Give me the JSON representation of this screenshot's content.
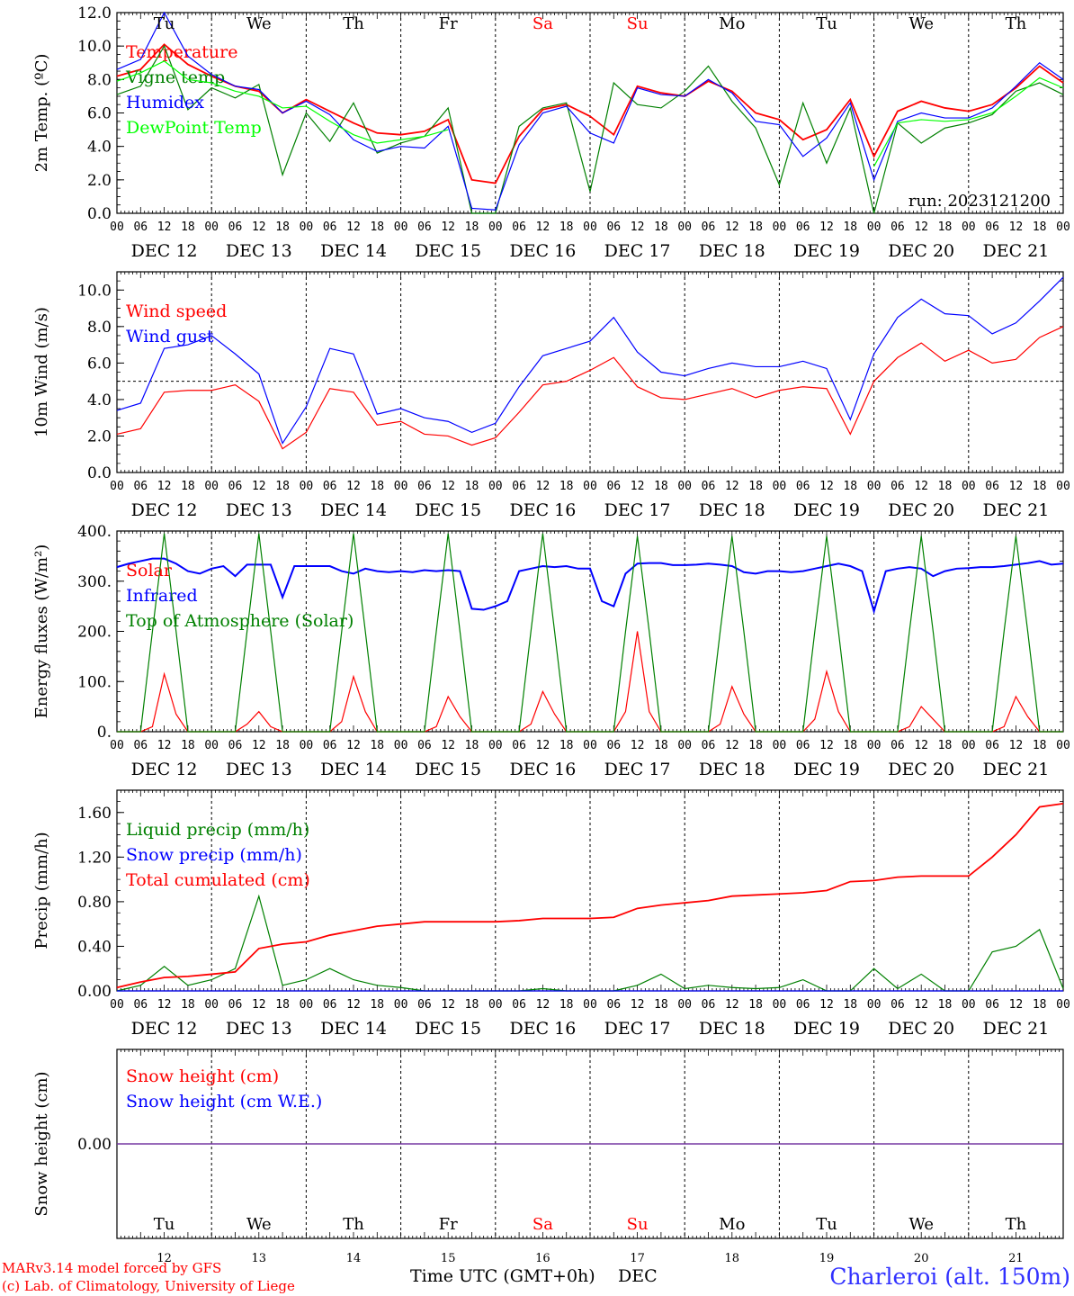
{
  "footer": {
    "credits": [
      "MARv3.14 model forced by GFS",
      "(c) Lab. of Climatology, University of Liege"
    ],
    "xlabel": "Time UTC (GMT+0h)",
    "month": "DEC",
    "station": "Charleroi (alt. 150m)"
  },
  "days": [
    "Tu",
    "We",
    "Th",
    "Fr",
    "Sa",
    "Su",
    "Mo",
    "Tu",
    "We",
    "Th"
  ],
  "weekend_days": [
    "Sa",
    "Su"
  ],
  "dates": [
    "DEC 12",
    "DEC 13",
    "DEC 14",
    "DEC 15",
    "DEC 16",
    "DEC 17",
    "DEC 18",
    "DEC 19",
    "DEC 20",
    "DEC 21"
  ],
  "day_numbers": [
    "12",
    "13",
    "14",
    "15",
    "16",
    "17",
    "18",
    "19",
    "20",
    "21"
  ],
  "hour_ticks": [
    "00",
    "06",
    "12",
    "18"
  ],
  "hour_end": "00",
  "colors": {
    "red": "#ff0000",
    "blue": "#0000ff",
    "green": "#008000",
    "lightgreen": "#00ff00",
    "purple": "#7030a0"
  },
  "chart_data": [
    {
      "type": "line",
      "ylabel": "2m Temp. (ºC)",
      "ylim": [
        0,
        12
      ],
      "yticks": [
        "0.0",
        "2.0",
        "4.0",
        "6.0",
        "8.0",
        "10.0",
        "12.0"
      ],
      "annotation": "run: 2023121200",
      "x_hours": [
        0,
        6,
        12,
        18,
        24,
        30,
        36,
        42,
        48,
        54,
        60,
        66,
        72,
        78,
        84,
        90,
        96,
        102,
        108,
        114,
        120,
        126,
        132,
        138,
        144,
        150,
        156,
        162,
        168,
        174,
        180,
        186,
        192,
        198,
        204,
        210,
        216,
        222,
        228,
        234,
        240
      ],
      "series": [
        {
          "name": "Temperature",
          "color": "#ff0000",
          "values": [
            8.2,
            8.6,
            10.1,
            8.9,
            8.2,
            7.6,
            7.3,
            6.0,
            6.8,
            6.1,
            5.4,
            4.8,
            4.7,
            4.9,
            5.6,
            2.0,
            1.8,
            4.6,
            6.2,
            6.5,
            5.8,
            4.7,
            7.6,
            7.2,
            7.0,
            7.9,
            7.3,
            6.0,
            5.6,
            4.4,
            5.0,
            6.8,
            3.4,
            6.1,
            6.7,
            6.3,
            6.1,
            6.5,
            7.5,
            8.8,
            7.8
          ]
        },
        {
          "name": "Vigne temp",
          "color": "#008000",
          "values": [
            7.1,
            7.6,
            10.0,
            6.2,
            7.5,
            6.9,
            7.7,
            2.3,
            6.0,
            4.3,
            6.6,
            3.6,
            4.2,
            4.6,
            6.3,
            0.0,
            0.0,
            5.2,
            6.3,
            6.6,
            1.3,
            7.8,
            6.5,
            6.3,
            7.3,
            8.8,
            6.7,
            5.1,
            1.7,
            6.6,
            3.0,
            6.3,
            0.0,
            5.4,
            4.2,
            5.1,
            5.4,
            5.9,
            7.3,
            7.8,
            7.1
          ]
        },
        {
          "name": "Humidex",
          "color": "#0000ff",
          "values": [
            8.6,
            9.2,
            12.0,
            9.4,
            8.3,
            7.6,
            7.4,
            6.0,
            6.7,
            5.9,
            4.4,
            3.7,
            4.0,
            3.9,
            5.2,
            0.3,
            0.2,
            4.1,
            6.0,
            6.4,
            4.8,
            4.2,
            7.5,
            7.1,
            7.0,
            8.0,
            7.2,
            5.5,
            5.3,
            3.4,
            4.5,
            6.6,
            2.0,
            5.5,
            6.0,
            5.7,
            5.7,
            6.3,
            7.6,
            9.0,
            8.0
          ]
        },
        {
          "name": "DewPoint Temp",
          "color": "#00ff00",
          "values": [
            7.9,
            8.4,
            9.1,
            8.0,
            7.8,
            7.3,
            7.0,
            6.3,
            6.4,
            5.5,
            4.7,
            4.2,
            4.4,
            4.6,
            5.0,
            null,
            null,
            null,
            null,
            null,
            null,
            null,
            null,
            null,
            null,
            null,
            null,
            null,
            null,
            null,
            null,
            null,
            2.8,
            5.4,
            5.6,
            5.5,
            5.6,
            6.0,
            7.0,
            8.1,
            7.5
          ]
        }
      ]
    },
    {
      "type": "line",
      "ylabel": "10m Wind (m/s)",
      "ylim": [
        0,
        11
      ],
      "yticks": [
        "0.0",
        "2.0",
        "4.0",
        "6.0",
        "8.0",
        "10.0"
      ],
      "reference_line": 5,
      "x_hours": [
        0,
        6,
        12,
        18,
        24,
        30,
        36,
        42,
        48,
        54,
        60,
        66,
        72,
        78,
        84,
        90,
        96,
        102,
        108,
        114,
        120,
        126,
        132,
        138,
        144,
        150,
        156,
        162,
        168,
        174,
        180,
        186,
        192,
        198,
        204,
        210,
        216,
        222,
        228,
        234,
        240
      ],
      "series": [
        {
          "name": "Wind speed",
          "color": "#ff0000",
          "values": [
            2.1,
            2.4,
            4.4,
            4.5,
            4.5,
            4.8,
            3.9,
            1.3,
            2.2,
            4.6,
            4.4,
            2.6,
            2.8,
            2.1,
            2.0,
            1.5,
            1.9,
            3.3,
            4.8,
            5.0,
            5.6,
            6.3,
            4.7,
            4.1,
            4.0,
            4.3,
            4.6,
            4.1,
            4.5,
            4.7,
            4.6,
            2.1,
            5.0,
            6.3,
            7.1,
            6.1,
            6.7,
            6.0,
            6.2,
            7.4,
            8.0
          ]
        },
        {
          "name": "Wind gust",
          "color": "#0000ff",
          "values": [
            3.4,
            3.8,
            6.8,
            7.0,
            7.5,
            6.5,
            5.4,
            1.6,
            3.6,
            6.8,
            6.5,
            3.2,
            3.5,
            3.0,
            2.8,
            2.2,
            2.7,
            4.7,
            6.4,
            6.8,
            7.2,
            8.5,
            6.6,
            5.5,
            5.3,
            5.7,
            6.0,
            5.8,
            5.8,
            6.1,
            5.7,
            2.9,
            6.5,
            8.5,
            9.5,
            8.7,
            8.6,
            7.6,
            8.2,
            9.4,
            10.7
          ]
        }
      ]
    },
    {
      "type": "line",
      "ylabel": "Energy fluxes (W/m²)",
      "ylim": [
        0,
        400
      ],
      "yticks": [
        "0.",
        "100.",
        "200.",
        "300.",
        "400."
      ],
      "x_hours": [
        0,
        3,
        6,
        9,
        12,
        15,
        18,
        21,
        24,
        27,
        30,
        33,
        36,
        39,
        42,
        45,
        48,
        51,
        54,
        57,
        60,
        63,
        66,
        69,
        72,
        75,
        78,
        81,
        84,
        87,
        90,
        93,
        96,
        99,
        102,
        105,
        108,
        111,
        114,
        117,
        120,
        123,
        126,
        129,
        132,
        135,
        138,
        141,
        144,
        147,
        150,
        153,
        156,
        159,
        162,
        165,
        168,
        171,
        174,
        177,
        180,
        183,
        186,
        189,
        192,
        195,
        198,
        201,
        204,
        207,
        210,
        213,
        216,
        219,
        222,
        225,
        228,
        231,
        234,
        237,
        240
      ],
      "series": [
        {
          "name": "Solar",
          "color": "#ff0000",
          "values": [
            0,
            0,
            0,
            10,
            115,
            35,
            0,
            0,
            0,
            0,
            0,
            15,
            40,
            10,
            0,
            0,
            0,
            0,
            0,
            20,
            110,
            40,
            0,
            0,
            0,
            0,
            0,
            10,
            70,
            30,
            0,
            0,
            0,
            0,
            0,
            15,
            80,
            35,
            0,
            0,
            0,
            0,
            0,
            40,
            200,
            40,
            0,
            0,
            0,
            0,
            0,
            15,
            90,
            35,
            0,
            0,
            0,
            0,
            0,
            25,
            120,
            40,
            0,
            0,
            0,
            0,
            0,
            10,
            50,
            25,
            0,
            0,
            0,
            0,
            0,
            10,
            70,
            30,
            0,
            0,
            0
          ]
        },
        {
          "name": "Infrared",
          "color": "#0000ff",
          "values": [
            328,
            335,
            340,
            345,
            345,
            335,
            320,
            315,
            325,
            330,
            310,
            333,
            333,
            333,
            268,
            330,
            330,
            330,
            330,
            320,
            315,
            325,
            320,
            318,
            320,
            318,
            322,
            320,
            322,
            320,
            245,
            243,
            250,
            260,
            320,
            325,
            330,
            328,
            330,
            325,
            325,
            260,
            250,
            315,
            335,
            336,
            336,
            332,
            332,
            333,
            335,
            333,
            330,
            318,
            315,
            320,
            320,
            318,
            320,
            325,
            330,
            335,
            330,
            320,
            240,
            320,
            325,
            328,
            325,
            310,
            320,
            325,
            326,
            328,
            328,
            330,
            333,
            336,
            340,
            333,
            335
          ]
        },
        {
          "name": "Top of Atmosphere (Solar)",
          "color": "#008000",
          "values": [
            0,
            0,
            0,
            200,
            395,
            200,
            0,
            0,
            0,
            0,
            0,
            200,
            395,
            200,
            0,
            0,
            0,
            0,
            0,
            200,
            395,
            200,
            0,
            0,
            0,
            0,
            0,
            200,
            395,
            200,
            0,
            0,
            0,
            0,
            0,
            200,
            395,
            200,
            0,
            0,
            0,
            0,
            0,
            200,
            390,
            200,
            0,
            0,
            0,
            0,
            0,
            200,
            390,
            200,
            0,
            0,
            0,
            0,
            0,
            200,
            390,
            200,
            0,
            0,
            0,
            0,
            0,
            200,
            390,
            200,
            0,
            0,
            0,
            0,
            0,
            200,
            390,
            200,
            0,
            0,
            0
          ]
        }
      ]
    },
    {
      "type": "line",
      "ylabel": "Precip (mm/h)",
      "ylim": [
        0,
        1.8
      ],
      "yticks": [
        "0.00",
        "0.40",
        "0.80",
        "1.20",
        "1.60"
      ],
      "x_hours": [
        0,
        6,
        12,
        18,
        24,
        30,
        36,
        42,
        48,
        54,
        60,
        66,
        72,
        78,
        84,
        90,
        96,
        102,
        108,
        114,
        120,
        126,
        132,
        138,
        144,
        150,
        156,
        162,
        168,
        174,
        180,
        186,
        192,
        198,
        204,
        210,
        216,
        222,
        228,
        234,
        240
      ],
      "series": [
        {
          "name": "Liquid precip (mm/h)",
          "color": "#008000",
          "values": [
            0.0,
            0.05,
            0.22,
            0.05,
            0.1,
            0.2,
            0.85,
            0.05,
            0.1,
            0.2,
            0.1,
            0.05,
            0.03,
            0.0,
            0.0,
            0.0,
            0.0,
            0.0,
            0.02,
            0.0,
            0.0,
            0.0,
            0.05,
            0.15,
            0.02,
            0.05,
            0.03,
            0.02,
            0.03,
            0.1,
            0.0,
            0.0,
            0.2,
            0.02,
            0.15,
            0.0,
            0.0,
            0.35,
            0.4,
            0.55,
            0.02
          ]
        },
        {
          "name": "Snow precip (mm/h)",
          "color": "#0000ff",
          "values": [
            0,
            0,
            0,
            0,
            0,
            0,
            0,
            0,
            0,
            0,
            0,
            0,
            0,
            0,
            0,
            0,
            0,
            0,
            0,
            0,
            0,
            0,
            0,
            0,
            0,
            0,
            0,
            0,
            0,
            0,
            0,
            0,
            0,
            0,
            0,
            0,
            0,
            0,
            0,
            0,
            0
          ]
        },
        {
          "name": "Total cumulated (cm)",
          "color": "#ff0000",
          "values": [
            0.03,
            0.08,
            0.12,
            0.13,
            0.15,
            0.17,
            0.38,
            0.42,
            0.44,
            0.5,
            0.54,
            0.58,
            0.6,
            0.62,
            0.62,
            0.62,
            0.62,
            0.63,
            0.65,
            0.65,
            0.65,
            0.66,
            0.74,
            0.77,
            0.79,
            0.81,
            0.85,
            0.86,
            0.87,
            0.88,
            0.9,
            0.98,
            0.99,
            1.02,
            1.03,
            1.03,
            1.03,
            1.2,
            1.4,
            1.65,
            1.68
          ]
        }
      ]
    },
    {
      "type": "line",
      "ylabel": "Snow height (cm)",
      "ylim": [
        -1,
        1
      ],
      "yticks": [
        "0.00"
      ],
      "x_hours": [
        0,
        240
      ],
      "series": [
        {
          "name": "Snow height (cm)",
          "color": "#ff0000",
          "values": [
            0,
            0
          ]
        },
        {
          "name": "Snow height (cm W.E.)",
          "color": "#0000ff",
          "values": [
            0,
            0
          ]
        }
      ]
    }
  ]
}
